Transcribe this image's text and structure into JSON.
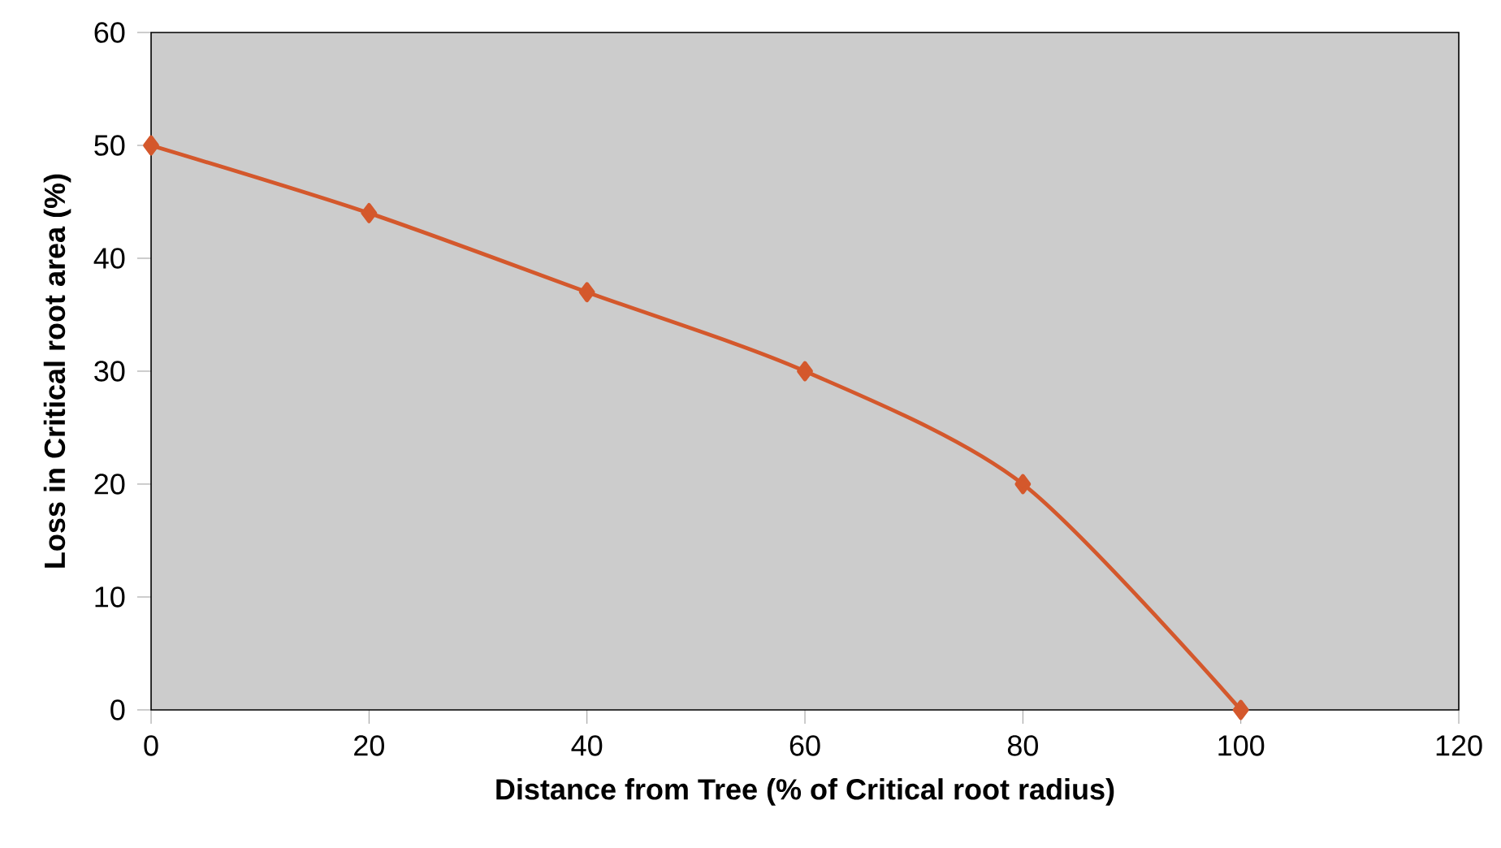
{
  "chart_data": {
    "type": "line",
    "xlabel": "Distance from Tree (% of Critical root radius)",
    "ylabel": "Loss in Critical root area (%)",
    "x": [
      0,
      20,
      40,
      60,
      80,
      100
    ],
    "series": [
      {
        "color": "#d4582c",
        "values": [
          50,
          44,
          37,
          30,
          20,
          0
        ]
      }
    ],
    "xlim": [
      0,
      120
    ],
    "xticks": [
      0,
      20,
      40,
      60,
      80,
      100,
      120
    ],
    "ylim": [
      0,
      60
    ],
    "yticks": [
      0,
      10,
      20,
      30,
      40,
      50,
      60
    ],
    "marker": "diamond",
    "line_style": "solid"
  }
}
